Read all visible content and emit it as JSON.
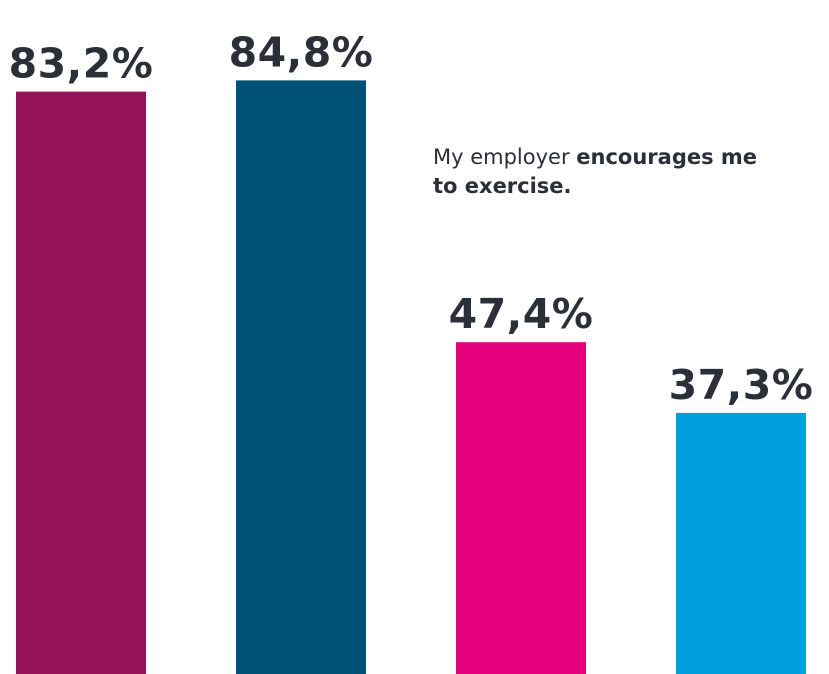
{
  "chart_data": {
    "type": "bar",
    "categories": [
      "",
      "",
      "",
      ""
    ],
    "values": [
      83.2,
      84.8,
      47.4,
      37.3
    ],
    "value_labels": [
      "83,2%",
      "84,8%",
      "47,4%",
      "37,3%"
    ],
    "colors": [
      "#96135a",
      "#005274",
      "#e4007a",
      "#009fe0"
    ],
    "ylim": [
      0,
      100
    ],
    "title": "",
    "xlabel": "",
    "ylabel": "",
    "grid": false,
    "annotation": {
      "text_regular": "My employer ",
      "text_bold_1": "encourages me",
      "text_bold_2": "to exercise."
    }
  }
}
